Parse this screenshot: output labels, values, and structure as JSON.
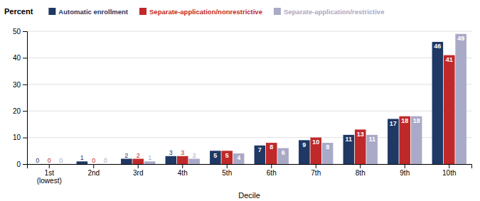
{
  "chart_data": {
    "type": "bar",
    "categories": [
      "1st\n(lowest)",
      "2nd",
      "3rd",
      "4th",
      "5th",
      "6th",
      "7th",
      "8th",
      "9th",
      "10th"
    ],
    "series": [
      {
        "name": "Automatic enrollment",
        "color": "#1F3864",
        "values": [
          0,
          1,
          2,
          3,
          5,
          7,
          9,
          11,
          17,
          46
        ]
      },
      {
        "name": "Separate-application/nonrestrictive",
        "color": "#C0292A",
        "values": [
          0,
          0,
          2,
          3,
          5,
          8,
          10,
          13,
          18,
          41
        ]
      },
      {
        "name": "Separate-application/restrictive",
        "color": "#A9A9C8",
        "values": [
          0,
          0,
          1,
          2,
          4,
          6,
          8,
          11,
          18,
          49
        ]
      }
    ],
    "xlabel": "Decile",
    "ylabel": "Percent",
    "ylim": [
      0,
      50
    ],
    "yticks": [
      0,
      10,
      20,
      30,
      40,
      50
    ],
    "grid": true,
    "legend": "top",
    "data_labels": true
  }
}
